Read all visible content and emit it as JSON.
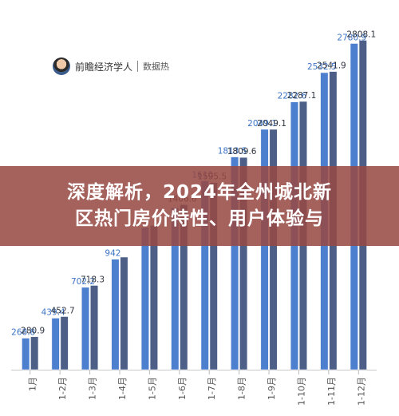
{
  "brand": {
    "name": "前瞻经济学人",
    "sub": "数据热"
  },
  "banner": {
    "line1": "深度解析，2024年全州城北新",
    "line2": "区热门房价特性、用户体验与"
  },
  "colors": {
    "series1": "#4d7fcf",
    "series2": "#4d5f86",
    "label1": "#3d74c6",
    "label2": "#2f3540",
    "banner": "#964842"
  },
  "chart_data": {
    "type": "bar",
    "categories": [
      "1月",
      "1-2月",
      "1-3月",
      "1-4月",
      "1-5月",
      "1-6月",
      "1-7月",
      "1-8月",
      "1-9月",
      "1-10月",
      "1-11月",
      "1-12月"
    ],
    "series": [
      {
        "values": [
          268.8,
          439.4,
          702.2,
          942,
          1213,
          1380,
          1610,
          1813.5,
          2049.1,
          2282.6,
          2532.5,
          2780.9
        ]
      },
      {
        "values": [
          280.9,
          452.7,
          718.3,
          960,
          1230,
          1406.6,
          1595.5,
          1809.6,
          2049.1,
          2287.1,
          2541.9,
          2808.1
        ]
      }
    ],
    "shown_labels": [
      [
        "268.8",
        "439.4",
        "702.2",
        "942",
        "",
        "",
        "1610",
        "1813.5",
        "2049.1",
        "2282.6",
        "2532.5",
        "2780.9"
      ],
      [
        "280.9",
        "452.7",
        "718.3",
        "",
        "",
        "1406.6",
        "1595.5",
        "1809.6",
        "2049.1",
        "2287.1",
        "2541.9",
        "2808.1"
      ]
    ],
    "ylim": [
      0,
      2900
    ],
    "grid": false,
    "legend": "none"
  }
}
